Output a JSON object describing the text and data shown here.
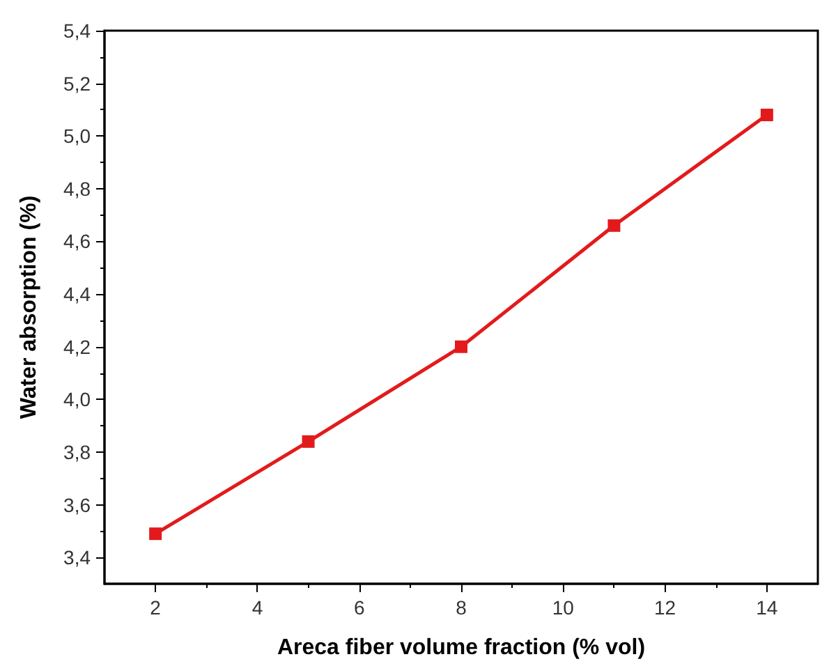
{
  "chart_data": {
    "type": "line",
    "xlabel": "Areca fiber volume fraction (% vol)",
    "ylabel": "Water absorption (%)",
    "x": [
      2,
      5,
      8,
      11,
      14
    ],
    "series": [
      {
        "color": "#e31a1c",
        "values": [
          3.49,
          3.84,
          4.2,
          4.66,
          5.08
        ]
      }
    ],
    "xlim": [
      1,
      15
    ],
    "xticks": [
      2,
      4,
      6,
      8,
      10,
      12,
      14
    ],
    "ylim": [
      3.3,
      5.4
    ],
    "yticks": [
      {
        "value": 3.4,
        "label": "3,4"
      },
      {
        "value": 3.6,
        "label": "3,6"
      },
      {
        "value": 3.8,
        "label": "3,8"
      },
      {
        "value": 4.0,
        "label": "4,0"
      },
      {
        "value": 4.2,
        "label": "4,2"
      },
      {
        "value": 4.4,
        "label": "4,4"
      },
      {
        "value": 4.6,
        "label": "4,6"
      },
      {
        "value": 4.8,
        "label": "4,8"
      },
      {
        "value": 5.0,
        "label": "5,0"
      },
      {
        "value": 5.2,
        "label": "5,2"
      },
      {
        "value": 5.4,
        "label": "5,4"
      }
    ],
    "marker": "square",
    "line_style": "solid"
  }
}
